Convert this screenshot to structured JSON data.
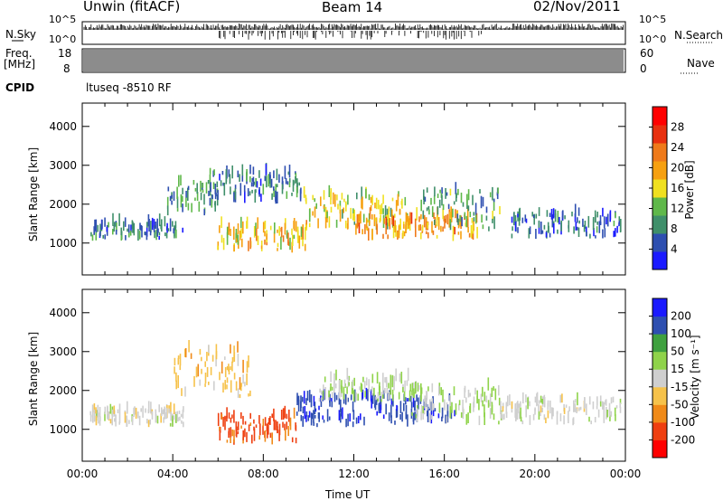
{
  "header": {
    "station": "Unwin (fitACF)",
    "beam": "Beam 14",
    "date": "02/Nov/2011"
  },
  "strips": {
    "nsky_label": "N.Sky",
    "nsearch_label": "N.Search",
    "nsky_top_tick": "10^5",
    "nsky_bottom_tick": "10^0",
    "freq_label": "Freq.",
    "freq_unit": "[MHz]",
    "freq_ticks": [
      "18",
      "8"
    ],
    "nave_label": "Nave",
    "nave_ticks": [
      "60",
      "0"
    ],
    "cpid_label": "CPID",
    "cpid_value": "ltuseq -8510 RF"
  },
  "chart_data": [
    {
      "type": "heatmap",
      "title": "",
      "xlabel": "Time UT",
      "ylabel": "Slant Range [km]",
      "x_ticks": [
        "00:00",
        "04:00",
        "08:00",
        "12:00",
        "16:00",
        "20:00",
        "00:00"
      ],
      "xlim_hours": [
        0,
        24
      ],
      "y_ticks": [
        1000,
        2000,
        3000,
        4000
      ],
      "ylim": [
        180,
        4600
      ],
      "colorbar": {
        "label": "Power [dB]",
        "ticks": [
          "4",
          "8",
          "12",
          "16",
          "20",
          "24",
          "28"
        ],
        "range": [
          0,
          30
        ],
        "colors": [
          "#1a1aff",
          "#2e4fb0",
          "#3f8f6a",
          "#5fb84a",
          "#f0e020",
          "#f6a010",
          "#ef7a1a",
          "#e8300f",
          "#ff0000"
        ]
      },
      "regions": [
        {
          "t": [
            0.3,
            4.5
          ],
          "r": [
            1050,
            1450
          ],
          "value": 6
        },
        {
          "t": [
            3.8,
            6.0
          ],
          "r": [
            1700,
            2500
          ],
          "value": 8
        },
        {
          "t": [
            5.5,
            9.8
          ],
          "r": [
            2000,
            2800
          ],
          "value": 6
        },
        {
          "t": [
            6.0,
            10.0
          ],
          "r": [
            750,
            1400
          ],
          "value": 17
        },
        {
          "t": [
            9.8,
            14.5
          ],
          "r": [
            1300,
            2200
          ],
          "value": 14
        },
        {
          "t": [
            12.0,
            17.5
          ],
          "r": [
            1050,
            1650
          ],
          "value": 20
        },
        {
          "t": [
            15.0,
            18.5
          ],
          "r": [
            1300,
            2300
          ],
          "value": 9
        },
        {
          "t": [
            19.0,
            23.8
          ],
          "r": [
            1100,
            1700
          ],
          "value": 5
        }
      ]
    },
    {
      "type": "heatmap",
      "title": "",
      "xlabel": "Time UT",
      "ylabel": "Slant Range [km]",
      "x_ticks": [
        "00:00",
        "04:00",
        "08:00",
        "12:00",
        "16:00",
        "20:00",
        "00:00"
      ],
      "xlim_hours": [
        0,
        24
      ],
      "y_ticks": [
        1000,
        2000,
        3000,
        4000
      ],
      "ylim": [
        180,
        4600
      ],
      "colorbar": {
        "label": "Velocity [m s⁻¹]",
        "ticks": [
          "200",
          "100",
          "50",
          "15",
          "-15",
          "-50",
          "-100",
          "-200"
        ],
        "range": [
          -250,
          250
        ],
        "colors": [
          "#ff0000",
          "#ef3f10",
          "#f08a18",
          "#f6c24a",
          "#cfcfcf",
          "#8fd34a",
          "#3fa13f",
          "#2e4fb0",
          "#1a1aff"
        ]
      },
      "regions": [
        {
          "t": [
            0.3,
            4.5
          ],
          "r": [
            1050,
            1450
          ],
          "value": 0
        },
        {
          "t": [
            4.0,
            7.5
          ],
          "r": [
            1800,
            3000
          ],
          "value": -60
        },
        {
          "t": [
            6.0,
            9.5
          ],
          "r": [
            600,
            1300
          ],
          "value": -180
        },
        {
          "t": [
            9.5,
            16.5
          ],
          "r": [
            1050,
            1800
          ],
          "value": 200
        },
        {
          "t": [
            10.5,
            15.0
          ],
          "r": [
            1700,
            2300
          ],
          "value": 40
        },
        {
          "t": [
            14.5,
            18.5
          ],
          "r": [
            1100,
            2000
          ],
          "value": 30
        },
        {
          "t": [
            18.5,
            23.8
          ],
          "r": [
            1100,
            1700
          ],
          "value": 0
        }
      ]
    }
  ]
}
